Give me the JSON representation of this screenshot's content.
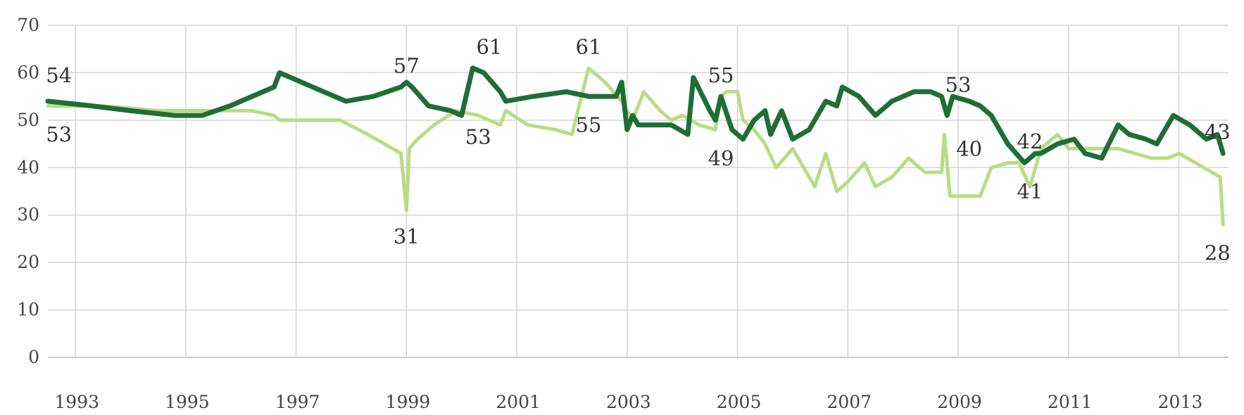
{
  "chart_data": {
    "type": "line",
    "title": "",
    "xlabel": "",
    "ylabel": "",
    "xlim": [
      1992.5,
      2013.9
    ],
    "ylim": [
      0,
      70
    ],
    "grid": true,
    "legend": "none",
    "x_ticks": [
      "1993",
      "1995",
      "1997",
      "1999",
      "2001",
      "2003",
      "2005",
      "2007",
      "2009",
      "2011",
      "2013"
    ],
    "y_ticks": [
      "0",
      "10",
      "20",
      "30",
      "40",
      "50",
      "60",
      "70"
    ],
    "series": [
      {
        "color": "#1e6e36",
        "x": [
          1992.5,
          1993.3,
          1994.0,
          1994.8,
          1995.3,
          1995.8,
          1996.2,
          1996.6,
          1996.7,
          1997.3,
          1997.9,
          1998.4,
          1998.9,
          1999.0,
          1999.1,
          1999.4,
          1999.8,
          2000.0,
          2000.2,
          2000.4,
          2000.7,
          2000.8,
          2001.3,
          2001.9,
          2002.3,
          2002.8,
          2002.9,
          2003.0,
          2003.1,
          2003.2,
          2003.5,
          2003.8,
          2004.1,
          2004.2,
          2004.5,
          2004.6,
          2004.7,
          2004.9,
          2005.0,
          2005.1,
          2005.3,
          2005.5,
          2005.6,
          2005.8,
          2006.0,
          2006.3,
          2006.6,
          2006.8,
          2006.9,
          2007.2,
          2007.5,
          2007.8,
          2008.2,
          2008.5,
          2008.7,
          2008.8,
          2008.9,
          2009.2,
          2009.4,
          2009.6,
          2009.9,
          2010.2,
          2010.4,
          2010.5,
          2010.8,
          2011.1,
          2011.3,
          2011.6,
          2011.9,
          2012.1,
          2012.4,
          2012.6,
          2012.9,
          2013.2,
          2013.5,
          2013.7,
          2013.8
        ],
        "values": [
          54,
          53,
          52,
          51,
          51,
          53,
          55,
          57,
          60,
          57,
          54,
          55,
          57,
          58,
          57,
          53,
          52,
          51,
          61,
          60,
          56,
          54,
          55,
          56,
          55,
          55,
          58,
          48,
          51,
          49,
          49,
          49,
          47,
          59,
          52,
          50,
          55,
          48,
          47,
          46,
          50,
          52,
          47,
          52,
          46,
          48,
          54,
          53,
          57,
          55,
          51,
          54,
          56,
          56,
          55,
          51,
          55,
          54,
          53,
          51,
          45,
          41,
          43,
          43,
          45,
          46,
          43,
          42,
          49,
          47,
          46,
          45,
          51,
          49,
          46,
          47,
          43
        ]
      },
      {
        "color": "#b8dc84",
        "x": [
          1992.5,
          1993.5,
          1994.5,
          1995.5,
          1996.2,
          1996.6,
          1996.7,
          1997.2,
          1997.8,
          1998.3,
          1998.9,
          1999.0,
          1999.05,
          1999.2,
          1999.5,
          1999.9,
          2000.3,
          2000.7,
          2000.8,
          2001.2,
          2001.7,
          2002.0,
          2002.3,
          2002.6,
          2002.9,
          2003.1,
          2003.3,
          2003.6,
          2003.8,
          2004.0,
          2004.3,
          2004.6,
          2004.7,
          2004.8,
          2005.0,
          2005.1,
          2005.3,
          2005.5,
          2005.7,
          2006.0,
          2006.2,
          2006.4,
          2006.6,
          2006.8,
          2007.0,
          2007.3,
          2007.5,
          2007.8,
          2008.1,
          2008.4,
          2008.7,
          2008.75,
          2008.85,
          2009.1,
          2009.4,
          2009.6,
          2009.9,
          2010.1,
          2010.3,
          2010.5,
          2010.8,
          2011.0,
          2011.3,
          2011.6,
          2011.9,
          2012.2,
          2012.5,
          2012.8,
          2013.0,
          2013.3,
          2013.6,
          2013.75,
          2013.8
        ],
        "values": [
          53,
          53,
          52,
          52,
          52,
          51,
          50,
          50,
          50,
          47,
          43,
          31,
          44,
          46,
          49,
          52,
          51,
          49,
          52,
          49,
          48,
          47,
          61,
          58,
          54,
          50,
          56,
          52,
          50,
          51,
          49,
          48,
          55,
          56,
          56,
          50,
          48,
          45,
          40,
          44,
          40,
          36,
          43,
          35,
          37,
          41,
          36,
          38,
          42,
          39,
          39,
          47,
          34,
          34,
          34,
          40,
          41,
          41,
          36,
          44,
          47,
          44,
          44,
          44,
          44,
          43,
          42,
          42,
          43,
          41,
          39,
          38,
          28
        ]
      }
    ],
    "annotations": [
      {
        "text": "54",
        "x": 1992.7,
        "y": 59.5
      },
      {
        "text": "53",
        "x": 1992.7,
        "y": 47.0
      },
      {
        "text": "57",
        "x": 1999.0,
        "y": 61.5
      },
      {
        "text": "31",
        "x": 1999.0,
        "y": 25.5
      },
      {
        "text": "61",
        "x": 2000.5,
        "y": 65.5
      },
      {
        "text": "53",
        "x": 2000.3,
        "y": 46.5
      },
      {
        "text": "61",
        "x": 2002.3,
        "y": 65.5
      },
      {
        "text": "55",
        "x": 2002.3,
        "y": 49.0
      },
      {
        "text": "55",
        "x": 2004.7,
        "y": 59.5
      },
      {
        "text": "49",
        "x": 2004.7,
        "y": 42.0
      },
      {
        "text": "53",
        "x": 2009.0,
        "y": 57.5
      },
      {
        "text": "40",
        "x": 2009.2,
        "y": 44.0
      },
      {
        "text": "42",
        "x": 2010.3,
        "y": 45.5
      },
      {
        "text": "41",
        "x": 2010.3,
        "y": 35.0
      },
      {
        "text": "43",
        "x": 2013.7,
        "y": 47.5
      },
      {
        "text": "28",
        "x": 2013.7,
        "y": 22.0
      }
    ]
  }
}
